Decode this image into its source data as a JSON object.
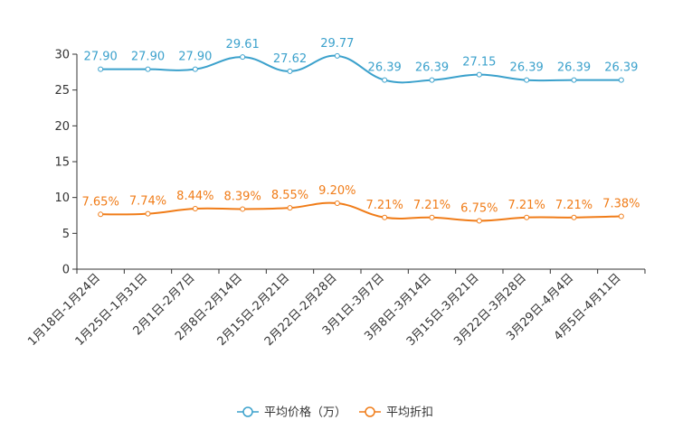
{
  "chart_data": {
    "type": "line",
    "categories": [
      "1月18日-1月24日",
      "1月25日-1月31日",
      "2月1日-2月7日",
      "2月8日-2月14日",
      "2月15日-2月21日",
      "2月22日-2月28日",
      "3月1日-3月7日",
      "3月8日-3月14日",
      "3月15日-3月21日",
      "3月22日-3月28日",
      "3月29日-4月4日",
      "4月5日-4月11日"
    ],
    "series": [
      {
        "name": "平均价格（万）",
        "color": "#3ba1cc",
        "values": [
          27.9,
          27.9,
          27.9,
          29.61,
          27.62,
          29.77,
          26.39,
          26.39,
          27.15,
          26.39,
          26.39,
          26.39
        ],
        "labels": [
          "27.90",
          "27.90",
          "27.90",
          "29.61",
          "27.62",
          "29.77",
          "26.39",
          "26.39",
          "27.15",
          "26.39",
          "26.39",
          "26.39"
        ]
      },
      {
        "name": "平均折扣",
        "color": "#f07c18",
        "values": [
          7.65,
          7.74,
          8.44,
          8.39,
          8.55,
          9.2,
          7.21,
          7.21,
          6.75,
          7.21,
          7.21,
          7.38
        ],
        "labels": [
          "7.65%",
          "7.74%",
          "8.44%",
          "8.39%",
          "8.55%",
          "9.20%",
          "7.21%",
          "7.21%",
          "6.75%",
          "7.21%",
          "7.21%",
          "7.38%"
        ]
      }
    ],
    "yticks": [
      "0",
      "5",
      "10",
      "15",
      "20",
      "25",
      "30"
    ],
    "ylim": [
      0,
      30
    ],
    "legend_position": "bottom-center",
    "title": "",
    "xlabel": "",
    "ylabel": ""
  }
}
